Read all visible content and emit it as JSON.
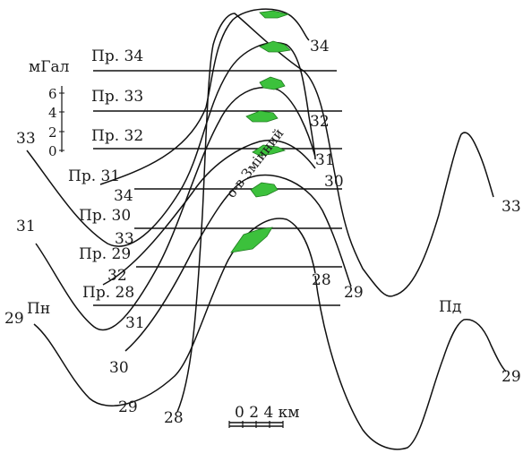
{
  "profiles": [
    {
      "id": "34",
      "label": "Пр. 34"
    },
    {
      "id": "33",
      "label": "Пр. 33"
    },
    {
      "id": "32",
      "label": "Пр. 32"
    },
    {
      "id": "31",
      "label": "Пр. 31"
    },
    {
      "id": "30",
      "label": "Пр. 30"
    },
    {
      "id": "29",
      "label": "Пр. 29"
    },
    {
      "id": "28",
      "label": "Пр. 28"
    }
  ],
  "curve_numbers_left": [
    "33",
    "34",
    "31",
    "33",
    "32",
    "29",
    "31",
    "30",
    "29",
    "28"
  ],
  "curve_numbers_right": [
    "34",
    "32",
    "31",
    "30",
    "28",
    "29",
    "33",
    "29"
  ],
  "scale_bar": {
    "label": "0 2 4 км"
  },
  "gravity_scale": {
    "unit": "мГал",
    "ticks": [
      "6",
      "4",
      "2",
      "0"
    ]
  },
  "directions": {
    "north": "Пн",
    "south": "Пд"
  },
  "island_name": "о-в Зміиний",
  "colors": {
    "island": "#3cc13c",
    "line": "#111111"
  }
}
